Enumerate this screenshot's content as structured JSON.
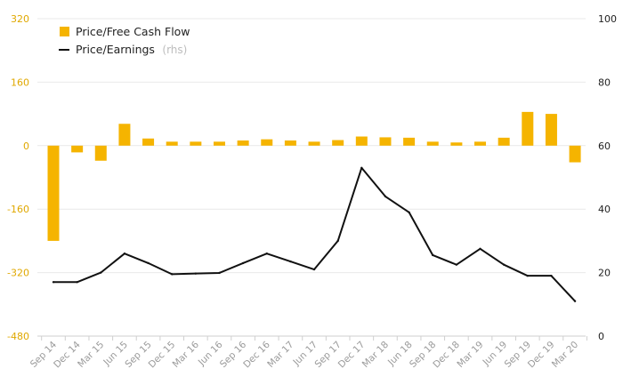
{
  "chart_data": {
    "type": "bar+line",
    "categories": [
      "Sep 14",
      "Dec 14",
      "Mar 15",
      "Jun 15",
      "Sep 15",
      "Dec 15",
      "Mar 16",
      "Jun 16",
      "Sep 16",
      "Dec 16",
      "Mar 17",
      "Jun 17",
      "Sep 17",
      "Dec 17",
      "Mar 18",
      "Jun 18",
      "Sep 18",
      "Dec 18",
      "Mar 19",
      "Jun 19",
      "Sep 19",
      "Dec 19",
      "Mar 20"
    ],
    "series": [
      {
        "name": "Price/Free Cash Flow",
        "axis": "left",
        "kind": "bar",
        "values": [
          -240,
          -17,
          -38,
          55,
          18,
          10,
          10,
          10,
          13,
          16,
          13,
          10,
          14,
          23,
          21,
          20,
          10,
          8,
          10,
          20,
          85,
          80,
          -42
        ]
      },
      {
        "name": "Price/Earnings",
        "suffix": "(rhs)",
        "axis": "right",
        "kind": "line",
        "values": [
          17,
          17,
          20,
          26,
          23,
          19.5,
          19.7,
          19.9,
          23,
          26,
          23.5,
          21,
          30,
          53,
          44,
          39,
          25.5,
          22.5,
          27.5,
          22.5,
          19,
          19,
          11
        ]
      }
    ],
    "y_left": {
      "min": -480,
      "max": 320,
      "ticks": [
        "320",
        "160",
        "0",
        "-160",
        "-320",
        "-480"
      ],
      "tick_values": [
        320,
        160,
        0,
        -160,
        -320,
        -480
      ]
    },
    "y_right": {
      "min": 0,
      "max": 100,
      "ticks": [
        "100",
        "80",
        "60",
        "40",
        "20",
        "0"
      ],
      "tick_values": [
        100,
        80,
        60,
        40,
        20,
        0
      ]
    },
    "grid": true,
    "legend_position": "top-left",
    "colors": {
      "bar": "#f5b400",
      "line": "#111111",
      "left_tick": "#e0a800",
      "grid": "#e9e9e9"
    }
  }
}
